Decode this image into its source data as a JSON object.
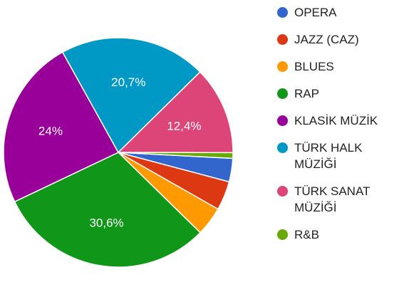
{
  "chart_data": {
    "type": "pie",
    "slices": [
      {
        "name": "OPERA",
        "value": 3.3,
        "color": "#3366cc",
        "label": ""
      },
      {
        "name": "JAZZ (CAZ)",
        "value": 4.1,
        "color": "#dc3912",
        "label": ""
      },
      {
        "name": "BLUES",
        "value": 4.1,
        "color": "#ff9900",
        "label": ""
      },
      {
        "name": "RAP",
        "value": 30.6,
        "color": "#109618",
        "label": "30,6%"
      },
      {
        "name": "KLASİK MÜZİK",
        "value": 24,
        "color": "#990099",
        "label": "24%"
      },
      {
        "name": "TÜRK HALK MÜZİĞİ",
        "value": 20.7,
        "color": "#0099c6",
        "label": "20,7%"
      },
      {
        "name": "TÜRK SANAT MÜZİĞİ",
        "value": 12.4,
        "color": "#dd4477",
        "label": "12,4%"
      },
      {
        "name": "R&B",
        "value": 0.8,
        "color": "#66aa00",
        "label": ""
      }
    ],
    "legend_position": "right"
  },
  "legend": {
    "items": [
      {
        "label": "OPERA",
        "color": "#3366cc"
      },
      {
        "label": "JAZZ (CAZ)",
        "color": "#dc3912"
      },
      {
        "label": "BLUES",
        "color": "#ff9900"
      },
      {
        "label": "RAP",
        "color": "#109618"
      },
      {
        "label": "KLASİK MÜZİK",
        "color": "#990099"
      },
      {
        "label": "TÜRK HALK MÜZİĞİ",
        "color": "#0099c6"
      },
      {
        "label": "TÜRK SANAT MÜZİĞİ",
        "color": "#dd4477"
      },
      {
        "label": "R&B",
        "color": "#66aa00"
      }
    ]
  }
}
